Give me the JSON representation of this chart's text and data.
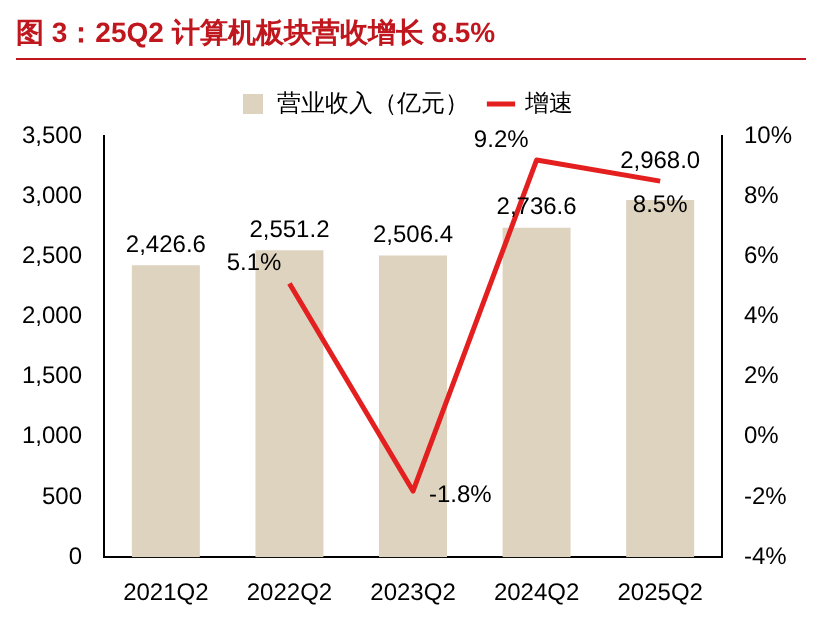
{
  "chart_data": {
    "type": "bar",
    "title": "图 3：25Q2 计算机板块营收增长 8.5%",
    "categories": [
      "2021Q2",
      "2022Q2",
      "2023Q2",
      "2024Q2",
      "2025Q2"
    ],
    "series": [
      {
        "name": "营业收入（亿元）",
        "color": "#ddd3bf",
        "values": [
          2426.6,
          2551.2,
          2506.4,
          2736.6,
          2968.0
        ],
        "value_labels": [
          "2,426.6",
          "2,551.2",
          "2,506.4",
          "2,736.6",
          "2,968.0"
        ]
      },
      {
        "name": "增速",
        "type": "line",
        "axis": "y2",
        "color": "#e3201f",
        "values": [
          null,
          5.1,
          -1.8,
          9.2,
          8.5
        ],
        "value_labels": [
          null,
          "5.1%",
          "-1.8%",
          "9.2%",
          "8.5%"
        ]
      }
    ],
    "ylim": [
      0,
      3500
    ],
    "yticks": [
      0,
      {
        "value": 500,
        "label": "500"
      },
      {
        "value": 1000,
        "label": "1,000"
      },
      {
        "value": 1500,
        "label": "1,500"
      },
      {
        "value": 2000,
        "label": "2,000"
      },
      {
        "value": 2500,
        "label": "2,500"
      },
      {
        "value": 3000,
        "label": "3,000"
      },
      {
        "value": 3500,
        "label": "3,500"
      }
    ],
    "y2lim": [
      -4,
      10
    ],
    "y2ticks": [
      {
        "value": -4,
        "label": "-4%"
      },
      {
        "value": -2,
        "label": "-2%"
      },
      {
        "value": 0,
        "label": "0%"
      },
      {
        "value": 2,
        "label": "2%"
      },
      {
        "value": 4,
        "label": "4%"
      },
      {
        "value": 6,
        "label": "6%"
      },
      {
        "value": 8,
        "label": "8%"
      },
      {
        "value": 10,
        "label": "10%"
      }
    ],
    "grid": false,
    "legend": "top",
    "marker": "none",
    "line_style": "solid"
  }
}
